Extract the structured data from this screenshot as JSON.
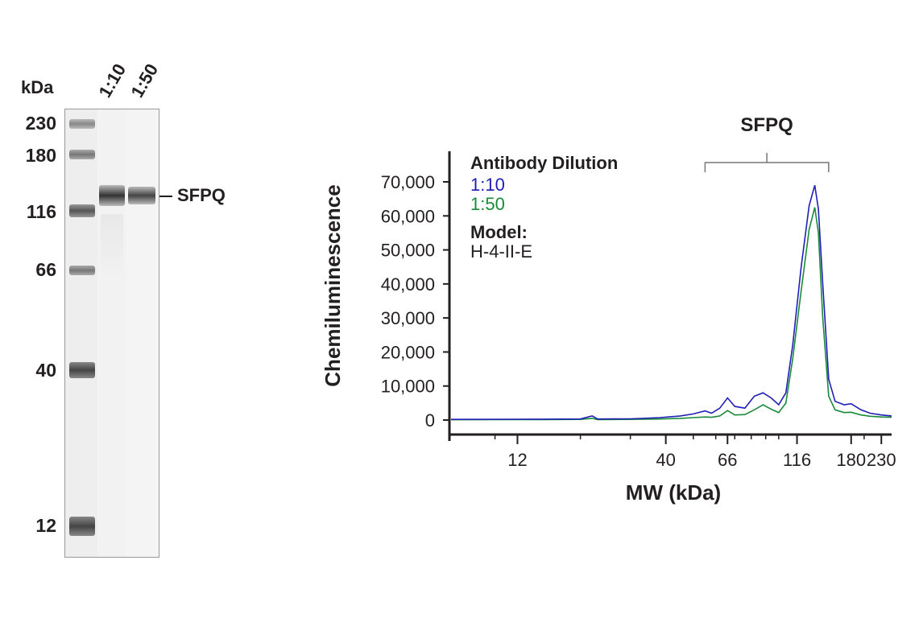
{
  "blot": {
    "unit_label": "kDa",
    "lanes": [
      "1:10",
      "1:50"
    ],
    "markers": [
      {
        "label": "230",
        "kda": 230
      },
      {
        "label": "180",
        "kda": 180
      },
      {
        "label": "116",
        "kda": 116
      },
      {
        "label": "66",
        "kda": 66
      },
      {
        "label": "40",
        "kda": 40
      },
      {
        "label": "12",
        "kda": 12
      }
    ],
    "target": "SFPQ"
  },
  "chart_data": {
    "type": "line",
    "title": "",
    "xlabel": "MW (kDa)",
    "ylabel": "Chemiluminescence",
    "xscale": "log",
    "xticks": [
      {
        "label": "12",
        "value": 12
      },
      {
        "label": "40",
        "value": 40
      },
      {
        "label": "66",
        "value": 66
      },
      {
        "label": "116",
        "value": 116
      },
      {
        "label": "180",
        "value": 180
      },
      {
        "label": "230",
        "value": 230
      }
    ],
    "yticks": [
      {
        "label": "0",
        "value": 0
      },
      {
        "label": "10,000",
        "value": 10000
      },
      {
        "label": "20,000",
        "value": 20000
      },
      {
        "label": "30,000",
        "value": 30000
      },
      {
        "label": "40,000",
        "value": 40000
      },
      {
        "label": "50,000",
        "value": 50000
      },
      {
        "label": "60,000",
        "value": 60000
      },
      {
        "label": "70,000",
        "value": 70000
      }
    ],
    "ylim": [
      0,
      70000
    ],
    "xlim": [
      7,
      250
    ],
    "grid": false,
    "legend": {
      "title": "Antibody Dilution",
      "model_title": "Model:",
      "model": "H-4-II-E",
      "placement": "top-left"
    },
    "annotation": {
      "label": "SFPQ",
      "range": [
        55,
        150
      ]
    },
    "series": [
      {
        "name": "1:10",
        "color": "#1f1fb8",
        "points": [
          [
            7,
            200
          ],
          [
            15,
            250
          ],
          [
            20,
            300
          ],
          [
            22,
            1200
          ],
          [
            23,
            300
          ],
          [
            30,
            350
          ],
          [
            38,
            700
          ],
          [
            45,
            1200
          ],
          [
            50,
            1800
          ],
          [
            55,
            2700
          ],
          [
            58,
            2000
          ],
          [
            62,
            3500
          ],
          [
            66,
            6500
          ],
          [
            70,
            4000
          ],
          [
            76,
            3500
          ],
          [
            82,
            7000
          ],
          [
            88,
            8000
          ],
          [
            94,
            6500
          ],
          [
            100,
            4500
          ],
          [
            106,
            8000
          ],
          [
            112,
            22000
          ],
          [
            120,
            45000
          ],
          [
            128,
            63000
          ],
          [
            134,
            69000
          ],
          [
            138,
            62000
          ],
          [
            143,
            40000
          ],
          [
            150,
            12000
          ],
          [
            158,
            5500
          ],
          [
            170,
            4500
          ],
          [
            180,
            4800
          ],
          [
            195,
            3000
          ],
          [
            210,
            2000
          ],
          [
            230,
            1500
          ],
          [
            250,
            1200
          ]
        ]
      },
      {
        "name": "1:50",
        "color": "#1a8a3a",
        "points": [
          [
            7,
            100
          ],
          [
            15,
            150
          ],
          [
            20,
            180
          ],
          [
            22,
            500
          ],
          [
            23,
            150
          ],
          [
            30,
            200
          ],
          [
            38,
            300
          ],
          [
            45,
            500
          ],
          [
            50,
            700
          ],
          [
            55,
            900
          ],
          [
            58,
            800
          ],
          [
            62,
            1200
          ],
          [
            66,
            2800
          ],
          [
            70,
            1500
          ],
          [
            76,
            1600
          ],
          [
            82,
            3000
          ],
          [
            88,
            4500
          ],
          [
            94,
            3200
          ],
          [
            100,
            2200
          ],
          [
            106,
            5000
          ],
          [
            112,
            18000
          ],
          [
            120,
            38000
          ],
          [
            128,
            56000
          ],
          [
            134,
            62500
          ],
          [
            138,
            55000
          ],
          [
            143,
            30000
          ],
          [
            150,
            7000
          ],
          [
            158,
            3000
          ],
          [
            170,
            2200
          ],
          [
            180,
            2300
          ],
          [
            195,
            1500
          ],
          [
            210,
            1100
          ],
          [
            230,
            900
          ],
          [
            250,
            800
          ]
        ]
      }
    ]
  }
}
